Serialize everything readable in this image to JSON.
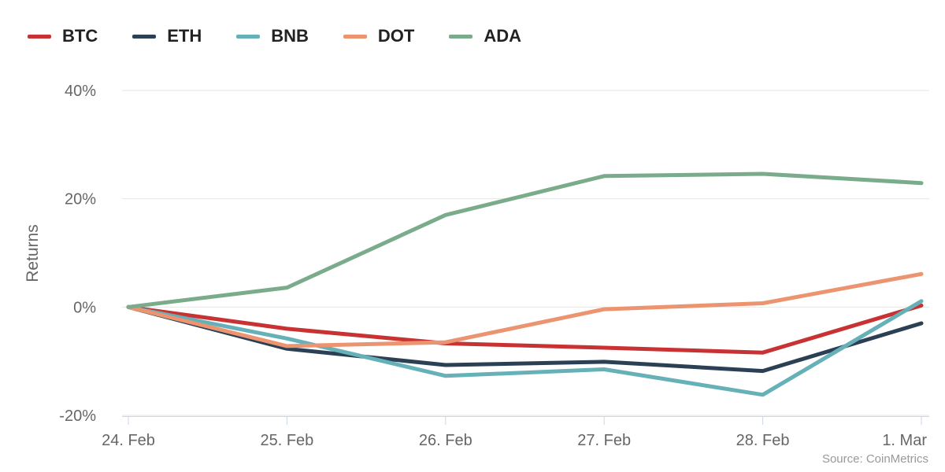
{
  "chart_data": {
    "type": "line",
    "title": "",
    "xlabel": "",
    "ylabel": "Returns",
    "categories": [
      "24. Feb",
      "25. Feb",
      "26. Feb",
      "27. Feb",
      "28. Feb",
      "1. Mar"
    ],
    "ylim": [
      -20,
      40
    ],
    "yticks": [
      -20,
      0,
      20,
      40
    ],
    "ytick_labels": [
      "-20%",
      "0%",
      "20%",
      "40%"
    ],
    "series": [
      {
        "name": "BTC",
        "color": "#c83232",
        "values": [
          0,
          -4,
          -6.7,
          -7.5,
          -8.4,
          0.3
        ]
      },
      {
        "name": "ETH",
        "color": "#2b4055",
        "values": [
          0,
          -7.7,
          -10.7,
          -10.1,
          -11.8,
          -3
        ]
      },
      {
        "name": "BNB",
        "color": "#66b1b8",
        "values": [
          0,
          -5.8,
          -12.7,
          -11.5,
          -16.2,
          1.1
        ]
      },
      {
        "name": "DOT",
        "color": "#ec9370",
        "values": [
          0,
          -7.2,
          -6.5,
          -0.4,
          0.7,
          6.1
        ]
      },
      {
        "name": "ADA",
        "color": "#7aab8a",
        "values": [
          0,
          3.6,
          17,
          24.2,
          24.6,
          22.9
        ]
      }
    ],
    "source": "Source: CoinMetrics"
  }
}
